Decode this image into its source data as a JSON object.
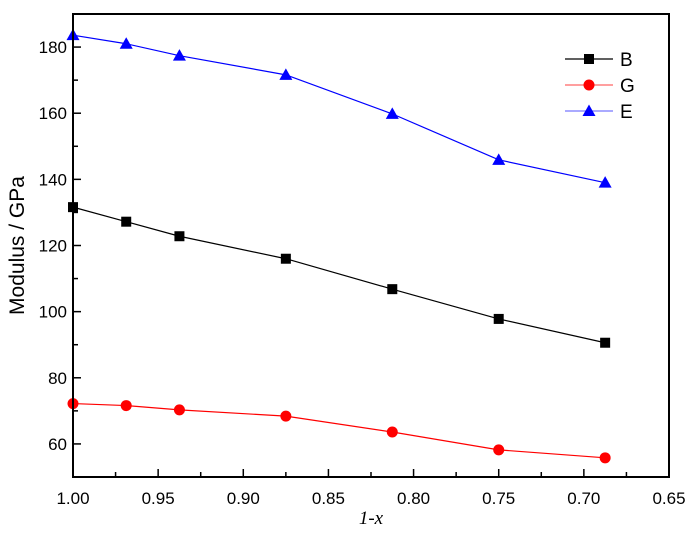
{
  "chart_data": {
    "type": "line",
    "title": "",
    "xlabel": "1-x",
    "ylabel": "Modulus / GPa",
    "xlim": [
      1.0,
      0.65
    ],
    "ylim": [
      50,
      190
    ],
    "x_reversed": true,
    "x_ticks": [
      1.0,
      0.95,
      0.9,
      0.85,
      0.8,
      0.75,
      0.7,
      0.65
    ],
    "x_tick_labels": [
      "1.00",
      "0.95",
      "0.90",
      "0.85",
      "0.80",
      "0.75",
      "0.70",
      "0.65"
    ],
    "y_ticks": [
      60,
      80,
      100,
      120,
      140,
      160,
      180
    ],
    "y_tick_labels": [
      "60",
      "80",
      "100",
      "120",
      "140",
      "160",
      "180"
    ],
    "grid": false,
    "legend_position": "upper right",
    "x": [
      1.0,
      0.96875,
      0.9375,
      0.875,
      0.8125,
      0.75,
      0.6875
    ],
    "series": [
      {
        "name": "B",
        "color": "#000000",
        "marker": "square",
        "values": [
          131.6,
          127.2,
          122.8,
          116.0,
          106.8,
          97.8,
          90.6
        ]
      },
      {
        "name": "G",
        "color": "#ff0000",
        "marker": "circle",
        "values": [
          72.2,
          71.6,
          70.3,
          68.4,
          63.6,
          58.2,
          55.8
        ]
      },
      {
        "name": "E",
        "color": "#0000ff",
        "marker": "triangle",
        "values": [
          183.6,
          181.0,
          177.4,
          171.6,
          159.8,
          145.9,
          139.0
        ]
      }
    ]
  }
}
